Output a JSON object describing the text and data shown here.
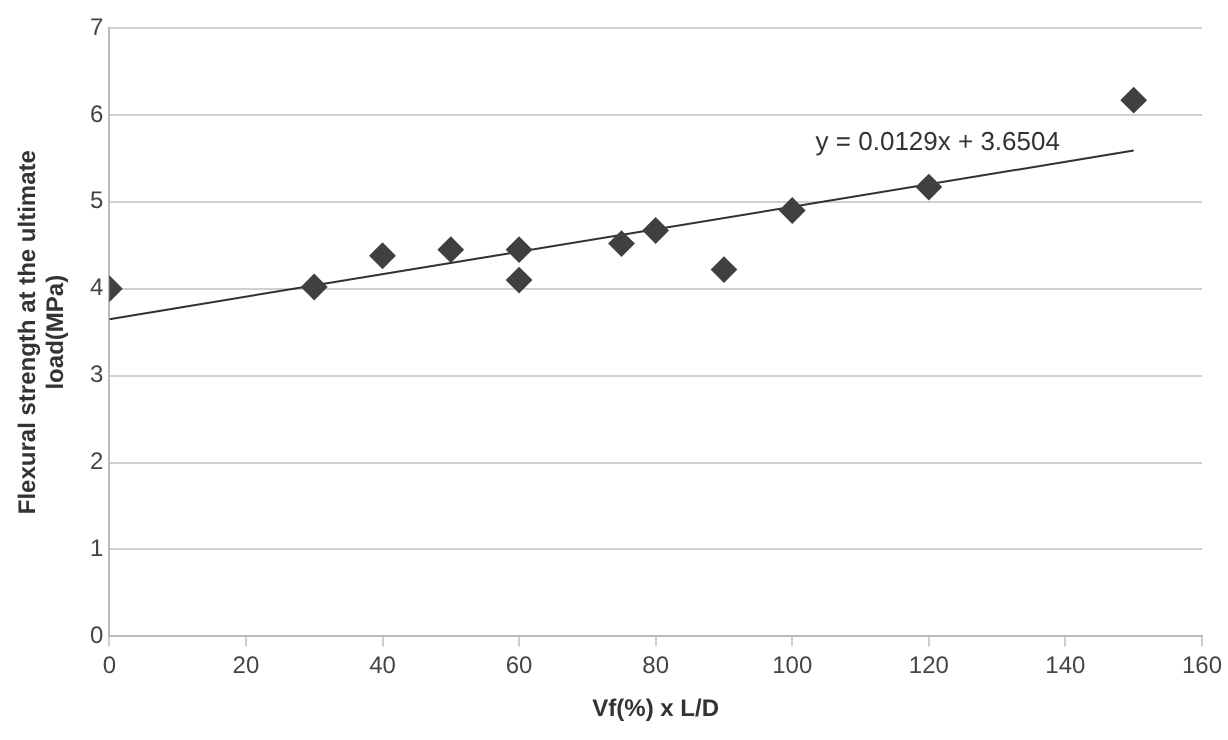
{
  "chart_data": {
    "type": "scatter",
    "xlabel": "Vf(%) x L/D",
    "ylabel": "Flexural strength at the ultimate load(MPa)",
    "x": [
      0,
      30,
      40,
      50,
      60,
      60,
      75,
      80,
      90,
      100,
      120,
      150
    ],
    "series": [
      {
        "color": "#404040",
        "marker": "diamond",
        "values": [
          4.0,
          4.02,
          4.38,
          4.45,
          4.45,
          4.1,
          4.52,
          4.67,
          4.22,
          4.9,
          5.17,
          6.17
        ]
      },
      {
        "type": "line",
        "color": "#303030",
        "marker": "none",
        "line_style": "solid",
        "x": [
          0,
          150
        ],
        "values": [
          3.65,
          5.59
        ]
      }
    ],
    "annotations": [
      "y = 0.0129x + 3.6504"
    ],
    "xlim": [
      0,
      160
    ],
    "xticks": [
      0,
      20,
      40,
      60,
      80,
      100,
      120,
      140,
      160
    ],
    "ylim": [
      0,
      7
    ],
    "yticks": [
      0,
      1,
      2,
      3,
      4,
      5,
      6,
      7
    ],
    "grid": "y",
    "legend": false
  }
}
